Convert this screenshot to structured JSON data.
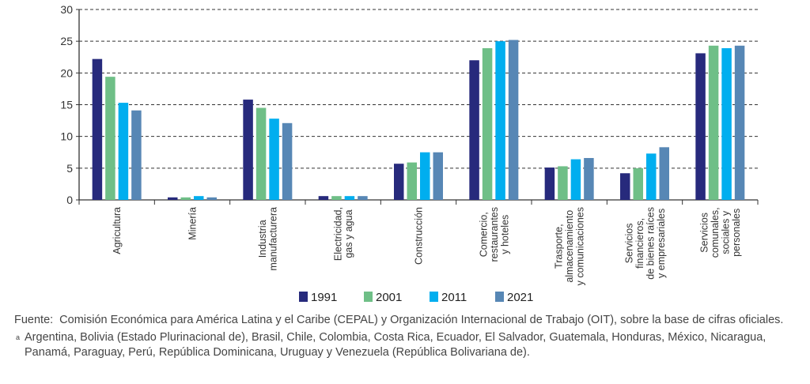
{
  "chart_data": {
    "type": "bar",
    "title": "",
    "xlabel": "",
    "ylabel": "",
    "ylim": [
      0,
      30
    ],
    "yticks": [
      0,
      5,
      10,
      15,
      20,
      25,
      30
    ],
    "grid": "horizontal dashed",
    "legend_position": "bottom",
    "categories": [
      [
        "Agricultura"
      ],
      [
        "Minería"
      ],
      [
        "Industria",
        "manufacturera"
      ],
      [
        "Electricidad,",
        "gas y agua"
      ],
      [
        "Construcción"
      ],
      [
        "Comercio,",
        "restaurantes",
        "y hoteles"
      ],
      [
        "Trasporte,",
        "almacenamiento",
        "y comunicaciones"
      ],
      [
        "Servicios",
        "financieros,",
        "de bienes raíces",
        "y empresariales"
      ],
      [
        "Servicios",
        "comunales,",
        "sociales y",
        "personales"
      ]
    ],
    "series": [
      {
        "name": "1991",
        "color": "#272a7c",
        "values": [
          22.2,
          0.4,
          15.8,
          0.6,
          5.7,
          22.0,
          5.1,
          4.2,
          23.1
        ]
      },
      {
        "name": "2001",
        "color": "#6fbf87",
        "values": [
          19.4,
          0.4,
          14.5,
          0.6,
          5.9,
          23.9,
          5.3,
          5.0,
          24.3
        ]
      },
      {
        "name": "2011",
        "color": "#00aeef",
        "values": [
          15.3,
          0.6,
          12.8,
          0.6,
          7.5,
          25.0,
          6.4,
          7.3,
          23.9
        ]
      },
      {
        "name": "2021",
        "color": "#5787b5",
        "values": [
          14.1,
          0.4,
          12.1,
          0.6,
          7.5,
          25.2,
          6.6,
          8.3,
          24.3
        ]
      }
    ]
  },
  "notes": {
    "fuente_label": "Fuente:",
    "fuente_text": "Comisión Económica para América Latina y el Caribe (CEPAL) y Organización Internacional de Trabajo (OIT), sobre la base de cifras oficiales.",
    "footnote_mark": "a",
    "footnote_text": "Argentina, Bolivia (Estado Plurinacional de), Brasil, Chile, Colombia, Costa Rica, Ecuador, El Salvador, Guatemala, Honduras, México, Nicaragua, Panamá, Paraguay, Perú, República Dominicana, Uruguay y Venezuela (República Bolivariana de)."
  }
}
